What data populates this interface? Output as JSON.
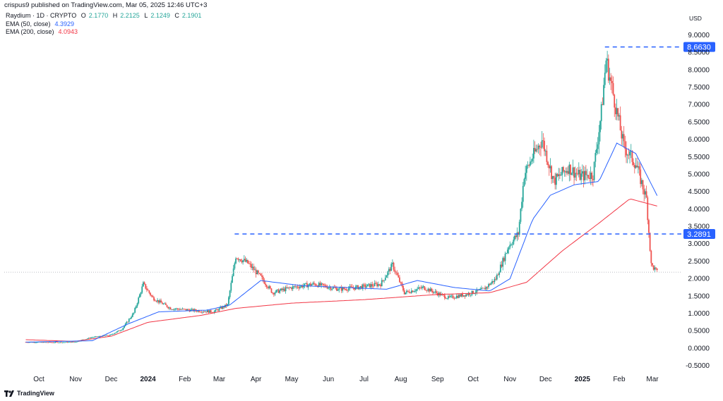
{
  "header": {
    "publisher": "crispus9 published on TradingView.com, Mar 05, 2025 12:46 UTC+3"
  },
  "legend": {
    "symbol": "Raydium · 1D · CRYPTO",
    "open_label": "O",
    "open": "2.1770",
    "high_label": "H",
    "high": "2.2125",
    "low_label": "L",
    "low": "2.1249",
    "close_label": "C",
    "close": "2.1901",
    "ema50_label": "EMA (50, close)",
    "ema50_value": "4.3929",
    "ema200_label": "EMA (200, close)",
    "ema200_value": "4.0943"
  },
  "currency": "USD",
  "footer": {
    "brand": "TradingView"
  },
  "colors": {
    "up": "#26a69a",
    "down": "#ef5350",
    "ema50": "#2962ff",
    "ema200": "#f23645",
    "level": "#2962ff",
    "text": "#131722",
    "grid_text": "#131722"
  },
  "chart_data": {
    "type": "candlestick",
    "title": "Raydium · 1D · CRYPTO",
    "ylabel": "USD",
    "ylim": [
      -0.5,
      9.0
    ],
    "y_ticks": [
      "-0.5000",
      "0.0000",
      "0.5000",
      "1.0000",
      "1.5000",
      "2.0000",
      "2.5000",
      "3.0000",
      "3.5000",
      "4.0000",
      "4.5000",
      "5.0000",
      "5.5000",
      "6.0000",
      "6.5000",
      "7.0000",
      "7.5000",
      "8.0000",
      "8.5000",
      "9.0000"
    ],
    "x_ticks": [
      "Oct",
      "Nov",
      "Dec",
      "2024",
      "Feb",
      "Mar",
      "Apr",
      "May",
      "Jun",
      "Jul",
      "Aug",
      "Sep",
      "Oct",
      "Nov",
      "Dec",
      "2025",
      "Feb",
      "Mar"
    ],
    "x_tick_bold": [
      false,
      false,
      false,
      true,
      false,
      false,
      false,
      false,
      false,
      false,
      false,
      false,
      false,
      false,
      false,
      true,
      false,
      false
    ],
    "levels": [
      {
        "value": 8.663,
        "label": "8.6630"
      },
      {
        "value": 3.2891,
        "label": "3.2891"
      }
    ],
    "last_price": 2.1901,
    "price_path": [
      [
        "2023-09-20",
        0.18
      ],
      [
        "2023-10-15",
        0.17
      ],
      [
        "2023-10-31",
        0.18
      ],
      [
        "2023-11-15",
        0.32
      ],
      [
        "2023-11-30",
        0.38
      ],
      [
        "2023-12-10",
        0.55
      ],
      [
        "2023-12-20",
        1.02
      ],
      [
        "2023-12-28",
        1.85
      ],
      [
        "2024-01-05",
        1.45
      ],
      [
        "2024-01-20",
        1.15
      ],
      [
        "2024-02-05",
        1.1
      ],
      [
        "2024-02-25",
        1.05
      ],
      [
        "2024-03-08",
        1.25
      ],
      [
        "2024-03-15",
        2.65
      ],
      [
        "2024-03-25",
        2.45
      ],
      [
        "2024-04-05",
        2.05
      ],
      [
        "2024-04-15",
        1.6
      ],
      [
        "2024-05-01",
        1.75
      ],
      [
        "2024-05-20",
        1.85
      ],
      [
        "2024-06-10",
        1.7
      ],
      [
        "2024-06-25",
        1.75
      ],
      [
        "2024-07-15",
        1.85
      ],
      [
        "2024-07-25",
        2.4
      ],
      [
        "2024-08-04",
        1.6
      ],
      [
        "2024-08-20",
        1.75
      ],
      [
        "2024-09-10",
        1.45
      ],
      [
        "2024-09-25",
        1.55
      ],
      [
        "2024-10-10",
        1.7
      ],
      [
        "2024-10-20",
        2.0
      ],
      [
        "2024-10-31",
        2.95
      ],
      [
        "2024-11-08",
        3.3
      ],
      [
        "2024-11-13",
        5.0
      ],
      [
        "2024-11-20",
        5.5
      ],
      [
        "2024-11-28",
        6.0
      ],
      [
        "2024-12-08",
        4.8
      ],
      [
        "2024-12-20",
        5.2
      ],
      [
        "2024-12-30",
        4.95
      ],
      [
        "2025-01-10",
        5.0
      ],
      [
        "2025-01-17",
        6.8
      ],
      [
        "2025-01-21",
        8.3
      ],
      [
        "2025-01-27",
        7.3
      ],
      [
        "2025-02-05",
        5.8
      ],
      [
        "2025-02-15",
        5.3
      ],
      [
        "2025-02-24",
        4.3
      ],
      [
        "2025-02-28",
        2.4
      ],
      [
        "2025-03-05",
        2.19
      ]
    ],
    "ema50_path": [
      [
        "2023-09-20",
        0.18
      ],
      [
        "2023-11-15",
        0.22
      ],
      [
        "2023-12-15",
        0.7
      ],
      [
        "2024-01-10",
        1.05
      ],
      [
        "2024-02-20",
        1.1
      ],
      [
        "2024-03-10",
        1.25
      ],
      [
        "2024-04-05",
        1.95
      ],
      [
        "2024-05-10",
        1.8
      ],
      [
        "2024-06-15",
        1.75
      ],
      [
        "2024-07-20",
        1.7
      ],
      [
        "2024-08-15",
        1.95
      ],
      [
        "2024-09-15",
        1.75
      ],
      [
        "2024-10-15",
        1.65
      ],
      [
        "2024-11-01",
        2.0
      ],
      [
        "2024-11-20",
        3.7
      ],
      [
        "2024-12-05",
        4.4
      ],
      [
        "2024-12-25",
        4.7
      ],
      [
        "2025-01-15",
        4.8
      ],
      [
        "2025-01-30",
        5.9
      ],
      [
        "2025-02-15",
        5.6
      ],
      [
        "2025-03-05",
        4.39
      ]
    ],
    "ema200_path": [
      [
        "2023-09-20",
        0.25
      ],
      [
        "2023-10-31",
        0.2
      ],
      [
        "2023-12-01",
        0.35
      ],
      [
        "2024-01-01",
        0.75
      ],
      [
        "2024-02-15",
        0.95
      ],
      [
        "2024-03-15",
        1.15
      ],
      [
        "2024-05-01",
        1.3
      ],
      [
        "2024-07-01",
        1.4
      ],
      [
        "2024-09-01",
        1.55
      ],
      [
        "2024-10-15",
        1.6
      ],
      [
        "2024-11-15",
        1.9
      ],
      [
        "2024-12-15",
        2.8
      ],
      [
        "2025-01-15",
        3.6
      ],
      [
        "2025-02-10",
        4.3
      ],
      [
        "2025-03-05",
        4.09
      ]
    ]
  }
}
